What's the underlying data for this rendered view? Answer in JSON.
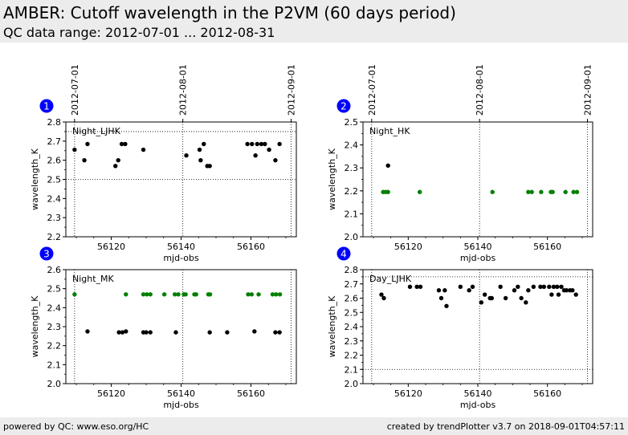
{
  "header": {
    "title": "AMBER: Cutoff wavelength in the P2VM (60 days period)",
    "subtitle": "QC data range: 2012-07-01 ... 2012-08-31"
  },
  "footer": {
    "left": "powered by QC: www.eso.org/HC",
    "right": "created by trendPlotter v3.7 on 2018-09-01T04:57:11"
  },
  "colors": {
    "black_points": "#000000",
    "green_points": "#008000",
    "badge": "#0000ff"
  },
  "date_markers": [
    {
      "label": "2012-07-01",
      "mjd": 56109.5
    },
    {
      "label": "2012-08-01",
      "mjd": 56140.5
    },
    {
      "label": "2012-09-01",
      "mjd": 56171.5
    }
  ],
  "chart_data": [
    {
      "type": "scatter",
      "badge": "1",
      "label": "Night_LJHK",
      "xlabel": "mjd-obs",
      "ylabel": "wavelength_K",
      "xlim": [
        56107,
        56173
      ],
      "ylim": [
        2.2,
        2.8
      ],
      "xticks": [
        56120,
        56140,
        56160
      ],
      "yticks": [
        2.2,
        2.3,
        2.4,
        2.5,
        2.6,
        2.7,
        2.8
      ],
      "hlines": [
        2.5,
        2.75
      ],
      "series": [
        {
          "color": "#000000",
          "points": [
            [
              56109.5,
              2.655
            ],
            [
              56112.3,
              2.6
            ],
            [
              56113.2,
              2.685
            ],
            [
              56121.2,
              2.57
            ],
            [
              56122,
              2.6
            ],
            [
              56123,
              2.685
            ],
            [
              56124,
              2.685
            ],
            [
              56129.2,
              2.655
            ],
            [
              56141.5,
              2.625
            ],
            [
              56145.3,
              2.655
            ],
            [
              56145.6,
              2.6
            ],
            [
              56146.5,
              2.685
            ],
            [
              56147.5,
              2.57
            ],
            [
              56148.2,
              2.57
            ],
            [
              56159,
              2.685
            ],
            [
              56160.3,
              2.685
            ],
            [
              56161.3,
              2.625
            ],
            [
              56161.8,
              2.685
            ],
            [
              56163,
              2.685
            ],
            [
              56164,
              2.685
            ],
            [
              56165.2,
              2.655
            ],
            [
              56167,
              2.6
            ],
            [
              56168.2,
              2.685
            ]
          ]
        }
      ]
    },
    {
      "type": "scatter",
      "badge": "2",
      "label": "Night_HK",
      "xlabel": "mjd-obs",
      "ylabel": "wavelength_K",
      "xlim": [
        56107,
        56173
      ],
      "ylim": [
        2.0,
        2.5
      ],
      "xticks": [
        56120,
        56140,
        56160
      ],
      "yticks": [
        2.0,
        2.1,
        2.2,
        2.3,
        2.4,
        2.5
      ],
      "hlines": [],
      "series": [
        {
          "color": "#000000",
          "points": [
            [
              56114.2,
              2.31
            ]
          ]
        },
        {
          "color": "#008000",
          "points": [
            [
              56112.8,
              2.195
            ],
            [
              56113.5,
              2.195
            ],
            [
              56114.2,
              2.195
            ],
            [
              56123.3,
              2.195
            ],
            [
              56144.2,
              2.195
            ],
            [
              56154.5,
              2.195
            ],
            [
              56155.5,
              2.195
            ],
            [
              56158.2,
              2.195
            ],
            [
              56161,
              2.195
            ],
            [
              56161.5,
              2.195
            ],
            [
              56165.2,
              2.195
            ],
            [
              56167.5,
              2.195
            ],
            [
              56168.5,
              2.195
            ]
          ]
        }
      ]
    },
    {
      "type": "scatter",
      "badge": "3",
      "label": "Night_MK",
      "xlabel": "mjd-obs",
      "ylabel": "wavelength_K",
      "xlim": [
        56107,
        56173
      ],
      "ylim": [
        2.0,
        2.6
      ],
      "xticks": [
        56120,
        56140,
        56160
      ],
      "yticks": [
        2.0,
        2.1,
        2.2,
        2.3,
        2.4,
        2.5,
        2.6
      ],
      "hlines": [],
      "series": [
        {
          "color": "#000000",
          "points": [
            [
              56113.2,
              2.275
            ],
            [
              56122.2,
              2.27
            ],
            [
              56123.2,
              2.27
            ],
            [
              56124.2,
              2.275
            ],
            [
              56129.2,
              2.27
            ],
            [
              56130,
              2.27
            ],
            [
              56131.2,
              2.27
            ],
            [
              56138.5,
              2.27
            ],
            [
              56148.2,
              2.27
            ],
            [
              56153.2,
              2.27
            ],
            [
              56161,
              2.275
            ],
            [
              56167,
              2.27
            ],
            [
              56168.2,
              2.27
            ]
          ]
        },
        {
          "color": "#008000",
          "points": [
            [
              56109.5,
              2.47
            ],
            [
              56124.2,
              2.47
            ],
            [
              56129.2,
              2.47
            ],
            [
              56130.2,
              2.47
            ],
            [
              56131.2,
              2.47
            ],
            [
              56135.2,
              2.47
            ],
            [
              56138.2,
              2.47
            ],
            [
              56139.2,
              2.47
            ],
            [
              56140.8,
              2.47
            ],
            [
              56141.3,
              2.47
            ],
            [
              56143.8,
              2.47
            ],
            [
              56144.3,
              2.47
            ],
            [
              56147.8,
              2.47
            ],
            [
              56148.3,
              2.47
            ],
            [
              56159.2,
              2.47
            ],
            [
              56160.2,
              2.47
            ],
            [
              56162.2,
              2.47
            ],
            [
              56166.2,
              2.47
            ],
            [
              56167.2,
              2.47
            ],
            [
              56168.3,
              2.47
            ]
          ]
        }
      ]
    },
    {
      "type": "scatter",
      "badge": "4",
      "label": "Day_LJHK",
      "xlabel": "mjd-obs",
      "ylabel": "wavelength_K",
      "xlim": [
        56107,
        56173
      ],
      "ylim": [
        2.0,
        2.8
      ],
      "xticks": [
        56120,
        56140,
        56160
      ],
      "yticks": [
        2.0,
        2.1,
        2.2,
        2.3,
        2.4,
        2.5,
        2.6,
        2.7,
        2.8
      ],
      "hlines": [
        2.1,
        2.75
      ],
      "series": [
        {
          "color": "#000000",
          "points": [
            [
              56112.3,
              2.625
            ],
            [
              56113,
              2.6
            ],
            [
              56120.5,
              2.68
            ],
            [
              56122.5,
              2.68
            ],
            [
              56123.5,
              2.68
            ],
            [
              56128.8,
              2.655
            ],
            [
              56129.5,
              2.6
            ],
            [
              56130.5,
              2.655
            ],
            [
              56131,
              2.545
            ],
            [
              56135,
              2.68
            ],
            [
              56137.5,
              2.655
            ],
            [
              56138.5,
              2.68
            ],
            [
              56141,
              2.57
            ],
            [
              56142,
              2.625
            ],
            [
              56143.5,
              2.6
            ],
            [
              56144,
              2.6
            ],
            [
              56146.5,
              2.68
            ],
            [
              56148,
              2.6
            ],
            [
              56150.5,
              2.655
            ],
            [
              56151.5,
              2.68
            ],
            [
              56152.5,
              2.6
            ],
            [
              56153.8,
              2.57
            ],
            [
              56154.5,
              2.655
            ],
            [
              56156,
              2.68
            ],
            [
              56158,
              2.68
            ],
            [
              56159,
              2.68
            ],
            [
              56160.5,
              2.68
            ],
            [
              56161.2,
              2.625
            ],
            [
              56161.8,
              2.68
            ],
            [
              56162.8,
              2.68
            ],
            [
              56163.2,
              2.625
            ],
            [
              56164,
              2.68
            ],
            [
              56164.8,
              2.655
            ],
            [
              56165.5,
              2.655
            ],
            [
              56166.5,
              2.655
            ],
            [
              56167.2,
              2.655
            ],
            [
              56168.2,
              2.625
            ]
          ]
        }
      ]
    }
  ]
}
